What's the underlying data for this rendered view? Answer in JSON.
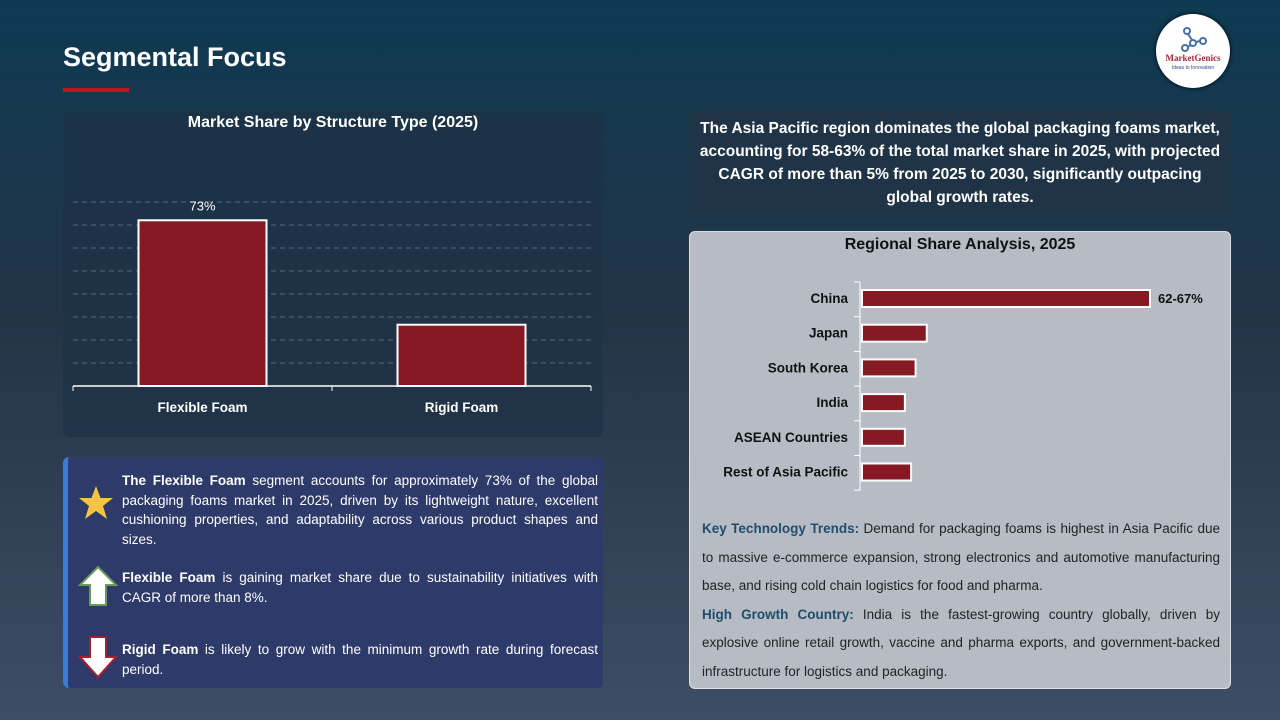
{
  "page": {
    "title": "Segmental Focus",
    "logo_text": "MarketGenics",
    "logo_tagline": "Ideas to Innovation"
  },
  "colors": {
    "accent": "#c0141e",
    "bar": "#861a24"
  },
  "chart_data": [
    {
      "type": "bar",
      "title": "Market Share by Structure Type (2025)",
      "categories": [
        "Flexible Foam",
        "Rigid Foam"
      ],
      "values": [
        73,
        27
      ],
      "data_labels": [
        "73%",
        ""
      ],
      "ylim": [
        0,
        100
      ],
      "grid": true
    },
    {
      "type": "bar",
      "orientation": "horizontal",
      "title": "Regional Share Analysis, 2025",
      "categories": [
        "China",
        "Japan",
        "South Korea",
        "India",
        "ASEAN Countries",
        "Rest of Asia Pacific"
      ],
      "values": [
        64.5,
        14.5,
        12,
        9.6,
        9.6,
        11
      ],
      "data_labels": [
        "62-67%",
        "",
        "",
        "",
        "",
        ""
      ],
      "grid": false
    }
  ],
  "points": [
    {
      "icon": "star-icon",
      "bold": "The Flexible Foam",
      "text": " segment accounts for approximately 73% of the global packaging foams market in 2025, driven by its lightweight nature, excellent cushioning properties, and adaptability across various product shapes and sizes."
    },
    {
      "icon": "arrow-up-icon",
      "bold": "Flexible Foam",
      "text": " is gaining market share due to sustainability initiatives with CAGR of more than 8%."
    },
    {
      "icon": "arrow-down-icon",
      "bold": "Rigid Foam",
      "text": " is likely to grow with the minimum growth rate during forecast period."
    }
  ],
  "summary": "The Asia Pacific region dominates the global packaging foams market, accounting for 58-63% of the total market share in 2025, with projected CAGR of more than 5% from 2025 to 2030, significantly outpacing global growth rates.",
  "trends": [
    {
      "label": "Key Technology Trends:",
      "text": " Demand for packaging foams is highest in Asia Pacific due to massive e-commerce expansion, strong electronics and automotive manufacturing base, and rising cold chain logistics for food and pharma."
    },
    {
      "label": "High Growth Country:",
      "text": " India is the fastest-growing country globally, driven by explosive online retail growth, vaccine and pharma exports, and government-backed infrastructure for logistics and packaging."
    }
  ]
}
